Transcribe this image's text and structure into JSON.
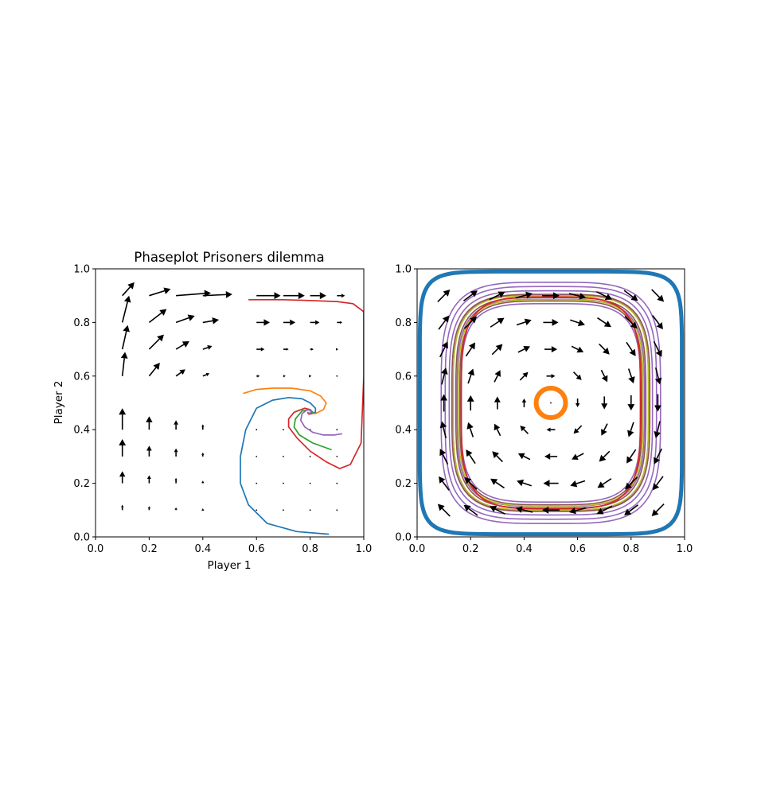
{
  "figure": {
    "background": "#ffffff"
  },
  "chart_data": [
    {
      "type": "quiver",
      "title": "Phaseplot Prisoners dilemma",
      "xlabel": "Player 1",
      "ylabel": "Player 2",
      "xlim": [
        0,
        1
      ],
      "ylim": [
        0,
        1
      ],
      "xticks": [
        "0.0",
        "0.2",
        "0.4",
        "0.6",
        "0.8",
        "1.0"
      ],
      "yticks": [
        "0.0",
        "0.2",
        "0.4",
        "0.6",
        "0.8",
        "1.0"
      ],
      "grid": false,
      "arrow_color": "#000000",
      "quiver": {
        "x": [
          0.1,
          0.2,
          0.3,
          0.4,
          0.6,
          0.7,
          0.8,
          0.9
        ],
        "y": [
          0.1,
          0.2,
          0.3,
          0.4,
          0.6,
          0.7,
          0.8,
          0.9
        ],
        "u": [
          [
            0.0,
            0.0,
            0.0,
            0.0,
            0.0,
            0.0,
            0.0,
            0.0
          ],
          [
            0.0,
            0.0,
            0.0,
            0.0,
            0.0,
            0.0,
            0.0,
            0.0
          ],
          [
            0.0,
            0.0,
            0.0,
            0.0,
            0.0,
            0.0,
            0.0,
            0.0
          ],
          [
            0.0,
            0.0,
            0.0,
            0.0,
            0.0,
            0.0,
            0.0,
            0.0
          ],
          [
            0.01,
            0.04,
            0.035,
            0.025,
            0.012,
            0.009,
            0.005,
            0.002
          ],
          [
            0.02,
            0.055,
            0.05,
            0.035,
            0.03,
            0.02,
            0.013,
            0.005
          ],
          [
            0.025,
            0.065,
            0.07,
            0.06,
            0.05,
            0.045,
            0.035,
            0.02
          ],
          [
            0.045,
            0.08,
            0.13,
            0.11,
            0.09,
            0.08,
            0.06,
            0.03
          ]
        ],
        "v": [
          [
            0.02,
            0.015,
            0.01,
            0.007,
            0.0,
            0.0,
            0.0,
            0.0
          ],
          [
            0.045,
            0.03,
            0.02,
            0.01,
            0.0,
            0.0,
            0.0,
            0.0
          ],
          [
            0.065,
            0.04,
            0.03,
            0.015,
            0.0,
            0.0,
            0.0,
            0.0
          ],
          [
            0.08,
            0.05,
            0.035,
            0.02,
            0.0,
            0.0,
            0.0,
            0.0
          ],
          [
            0.09,
            0.05,
            0.025,
            0.01,
            0.0,
            0.0,
            0.0,
            0.0
          ],
          [
            0.09,
            0.055,
            0.03,
            0.012,
            0.0,
            0.0,
            0.0,
            0.0
          ],
          [
            0.1,
            0.05,
            0.025,
            0.01,
            0.0,
            0.0,
            0.0,
            0.0
          ],
          [
            0.05,
            0.025,
            0.01,
            0.005,
            0.0,
            0.0,
            0.0,
            0.0
          ]
        ]
      },
      "series": [
        {
          "color": "#1f77b4",
          "x": [
            0.87,
            0.75,
            0.64,
            0.57,
            0.54,
            0.54,
            0.56,
            0.6,
            0.66,
            0.72,
            0.77,
            0.8,
            0.82,
            0.82,
            0.8,
            0.79
          ],
          "y": [
            0.01,
            0.02,
            0.05,
            0.12,
            0.2,
            0.3,
            0.4,
            0.48,
            0.51,
            0.52,
            0.515,
            0.5,
            0.48,
            0.465,
            0.46,
            0.465
          ]
        },
        {
          "color": "#ff7f0e",
          "x": [
            0.55,
            0.6,
            0.66,
            0.73,
            0.8,
            0.84,
            0.86,
            0.85,
            0.82,
            0.8,
            0.79
          ],
          "y": [
            0.535,
            0.55,
            0.555,
            0.555,
            0.545,
            0.525,
            0.5,
            0.475,
            0.46,
            0.46,
            0.465
          ]
        },
        {
          "color": "#2ca02c",
          "x": [
            0.88,
            0.81,
            0.76,
            0.74,
            0.745,
            0.77,
            0.8,
            0.81,
            0.8,
            0.79
          ],
          "y": [
            0.325,
            0.35,
            0.38,
            0.41,
            0.44,
            0.47,
            0.475,
            0.465,
            0.458,
            0.465
          ]
        },
        {
          "color": "#d62728",
          "x": [
            0.57,
            0.7,
            0.8,
            0.9,
            0.96,
            1.0,
            1.0,
            0.99,
            0.95,
            0.91,
            0.86,
            0.8,
            0.75,
            0.72,
            0.72,
            0.74,
            0.78,
            0.8,
            0.805,
            0.795,
            0.79
          ],
          "y": [
            0.885,
            0.885,
            0.882,
            0.878,
            0.87,
            0.84,
            0.6,
            0.35,
            0.27,
            0.255,
            0.28,
            0.32,
            0.37,
            0.41,
            0.44,
            0.465,
            0.48,
            0.475,
            0.46,
            0.458,
            0.465
          ]
        },
        {
          "color": "#9467bd",
          "x": [
            0.92,
            0.89,
            0.85,
            0.81,
            0.78,
            0.765,
            0.77,
            0.79,
            0.805,
            0.8,
            0.79
          ],
          "y": [
            0.385,
            0.38,
            0.38,
            0.39,
            0.41,
            0.435,
            0.46,
            0.475,
            0.47,
            0.458,
            0.465
          ]
        }
      ]
    },
    {
      "type": "quiver",
      "title": "",
      "xlabel": "",
      "ylabel": "",
      "xlim": [
        0,
        1
      ],
      "ylim": [
        0,
        1
      ],
      "xticks": [
        "0.0",
        "0.2",
        "0.4",
        "0.6",
        "0.8",
        "1.0"
      ],
      "yticks": [
        "0.0",
        "0.2",
        "0.4",
        "0.6",
        "0.8",
        "1.0"
      ],
      "grid": false,
      "arrow_color": "#000000",
      "field": "rotational_around_center",
      "center": [
        0.5,
        0.5
      ],
      "quiver_grid": [
        0.1,
        0.2,
        0.3,
        0.4,
        0.5,
        0.6,
        0.7,
        0.8,
        0.9
      ],
      "series": [
        {
          "color": "#1f77b4",
          "shape": "superellipse_loop",
          "rx": 0.49,
          "ry": 0.49,
          "power": 8,
          "linewidth": 5
        },
        {
          "color": "#ff7f0e",
          "shape": "circle_loop",
          "rx": 0.055,
          "ry": 0.055,
          "linewidth": 6
        },
        {
          "color": "#9467bd",
          "shape": "superellipse_band",
          "rx_range": [
            0.335,
            0.41
          ],
          "ry_range": [
            0.37,
            0.45
          ],
          "power": 4,
          "count": 6,
          "linewidth": 1.6
        },
        {
          "color": "#8c564b",
          "shape": "superellipse_band",
          "rx_range": [
            0.34,
            0.37
          ],
          "ry_range": [
            0.38,
            0.405
          ],
          "power": 4,
          "count": 3,
          "linewidth": 1.6
        },
        {
          "color": "#bcbd22",
          "shape": "superellipse_band",
          "rx_range": [
            0.345,
            0.365
          ],
          "ry_range": [
            0.385,
            0.4
          ],
          "power": 4,
          "count": 2,
          "linewidth": 1.4
        },
        {
          "color": "#d62728",
          "shape": "superellipse_loop",
          "rx": 0.335,
          "ry": 0.395,
          "power": 4,
          "linewidth": 1.8
        }
      ]
    }
  ]
}
